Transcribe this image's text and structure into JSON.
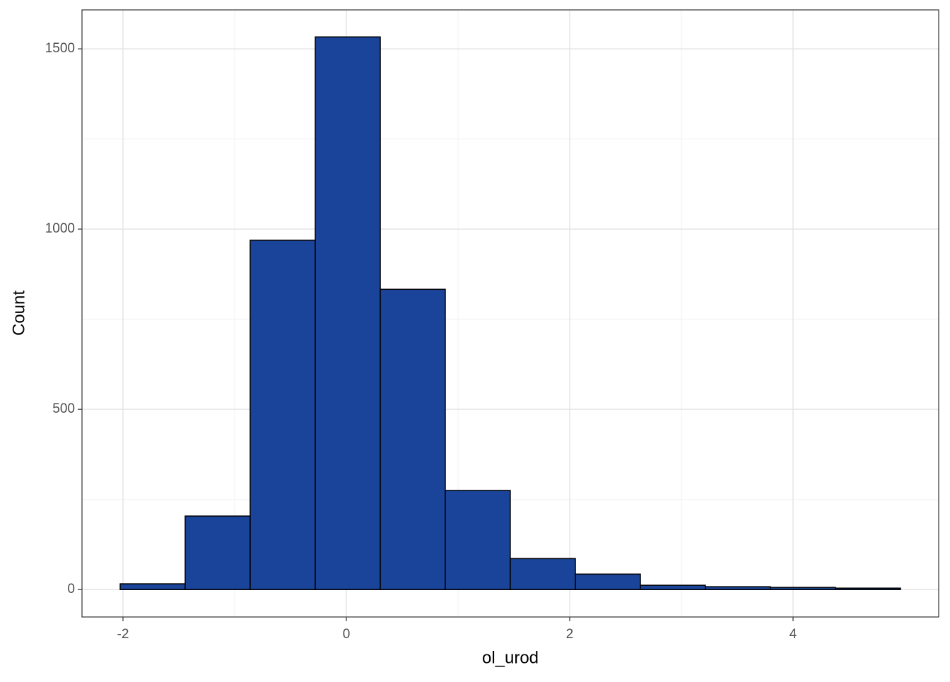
{
  "chart_data": {
    "type": "histogram",
    "x_label": "ol_urod",
    "y_label": "Count",
    "bins": [
      -2.025,
      -1.443,
      -0.861,
      -0.278,
      0.304,
      0.886,
      1.468,
      2.051,
      2.633,
      3.215,
      3.797,
      4.38,
      4.962
    ],
    "values": [
      16,
      204,
      969,
      1533,
      833,
      275,
      86,
      43,
      12,
      8,
      6,
      4
    ],
    "color": "#1a4499",
    "edge_color": "#000000",
    "xlim": [
      -2.367,
      5.304
    ],
    "xticks": [
      -2,
      0,
      2,
      4
    ],
    "x_minor_grid": [
      -1,
      1,
      3
    ],
    "ylim": [
      -76,
      1608
    ],
    "yticks": [
      0,
      500,
      1000,
      1500
    ],
    "y_minor_grid": [
      250,
      750,
      1250
    ],
    "grid": true
  }
}
